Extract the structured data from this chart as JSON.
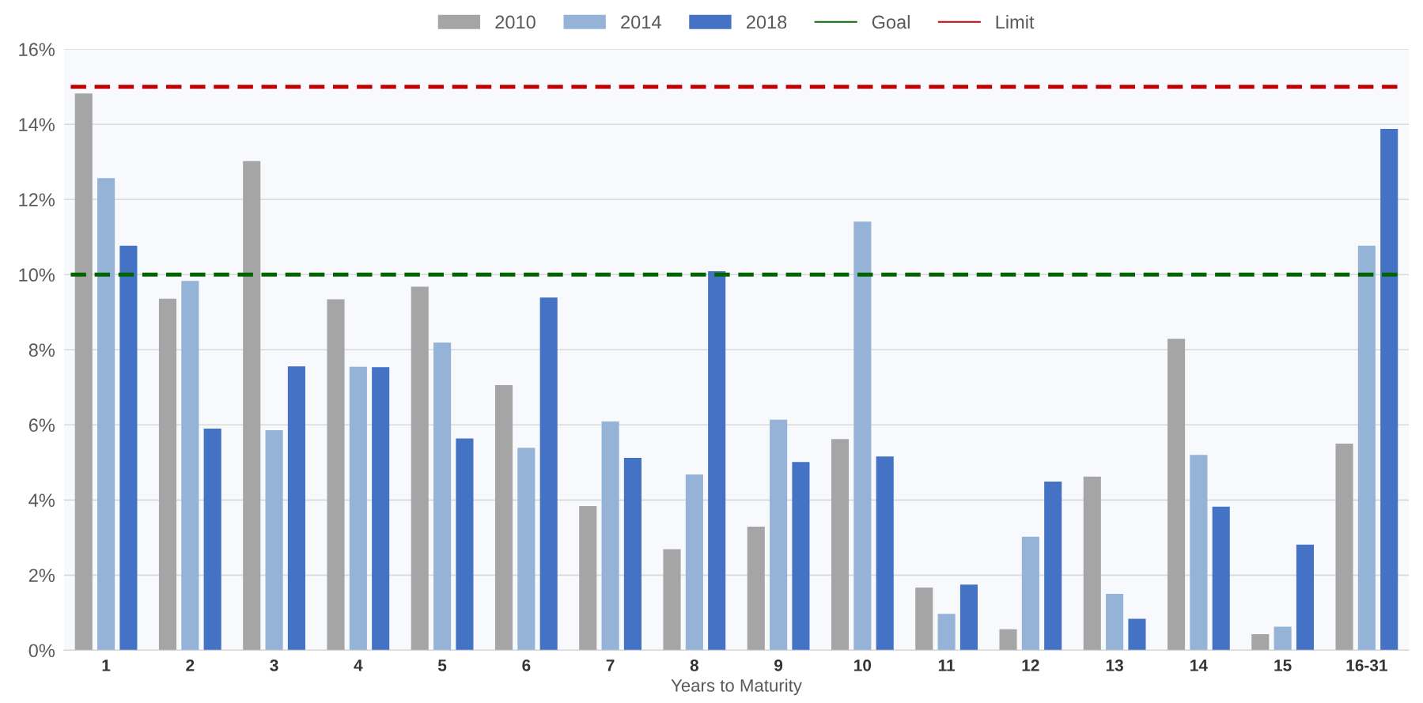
{
  "chart_data": {
    "type": "bar",
    "xlabel": "Years to Maturity",
    "categories": [
      "1",
      "2",
      "3",
      "4",
      "5",
      "6",
      "7",
      "8",
      "9",
      "10",
      "11",
      "12",
      "13",
      "14",
      "15",
      "16-31"
    ],
    "series": [
      {
        "name": "2010",
        "color": "#a5a5a5",
        "values": [
          14.82,
          9.36,
          13.02,
          9.34,
          9.68,
          7.06,
          3.84,
          2.69,
          3.29,
          5.62,
          1.67,
          0.56,
          4.62,
          8.29,
          0.43,
          5.5
        ]
      },
      {
        "name": "2014",
        "color": "#95b3d7",
        "values": [
          12.57,
          9.83,
          5.86,
          7.55,
          8.19,
          5.39,
          6.09,
          4.68,
          6.14,
          11.41,
          0.97,
          3.02,
          1.5,
          5.2,
          0.63,
          10.77
        ]
      },
      {
        "name": "2018",
        "color": "#4472c4",
        "values": [
          10.77,
          5.9,
          7.56,
          7.54,
          5.64,
          9.39,
          5.12,
          10.09,
          5.01,
          5.16,
          1.75,
          4.49,
          0.84,
          3.82,
          2.81,
          13.88
        ]
      }
    ],
    "ref_lines": [
      {
        "axis": "y",
        "value": 10,
        "label": "Goal",
        "color": "#006400",
        "line_style": "dashed"
      },
      {
        "axis": "y",
        "value": 15,
        "label": "Limit",
        "color": "#c00000",
        "line_style": "dashed"
      }
    ],
    "ylim": [
      0,
      16
    ],
    "yticks": [
      {
        "value": 0,
        "label": "0%"
      },
      {
        "value": 2,
        "label": "2%"
      },
      {
        "value": 4,
        "label": "4%"
      },
      {
        "value": 6,
        "label": "6%"
      },
      {
        "value": 8,
        "label": "8%"
      },
      {
        "value": 10,
        "label": "10%"
      },
      {
        "value": 12,
        "label": "12%"
      },
      {
        "value": 14,
        "label": "14%"
      },
      {
        "value": 16,
        "label": "16%"
      }
    ],
    "grid": "y",
    "legend": "top"
  }
}
